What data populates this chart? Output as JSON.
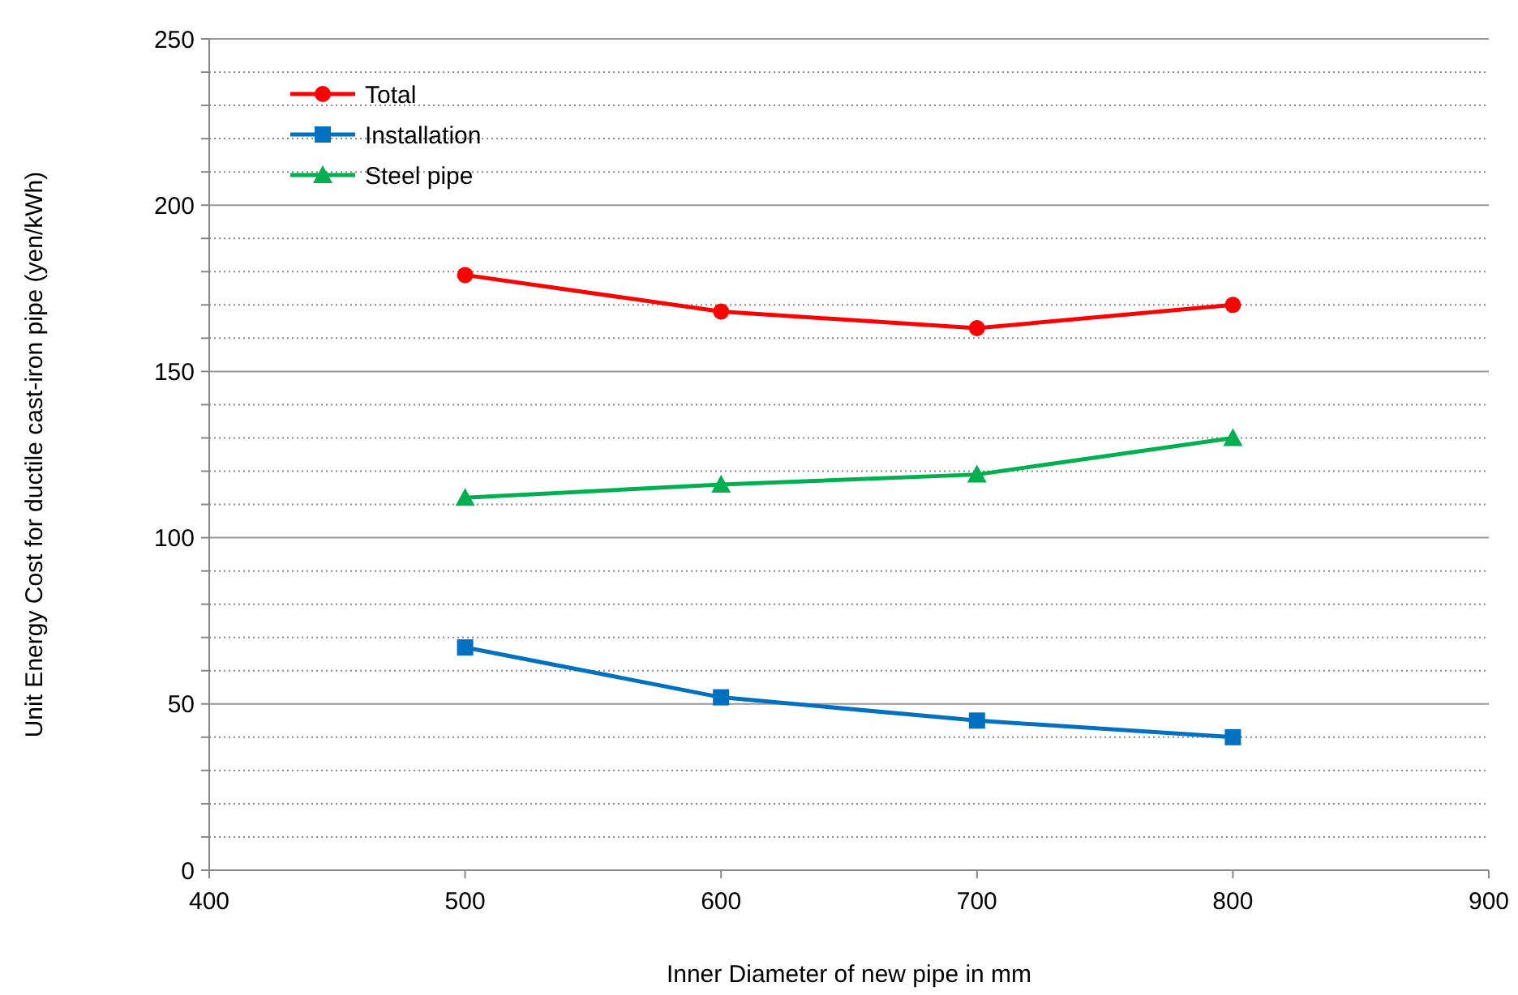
{
  "chart_data": {
    "type": "line",
    "xlabel": "Inner Diameter of new pipe in mm",
    "ylabel": "Unit Energy Cost for ductile cast-iron pipe (yen/kWh)",
    "x": [
      500,
      600,
      700,
      800
    ],
    "series": [
      {
        "name": "Total",
        "color": "#ff0000",
        "values": [
          179,
          168,
          163,
          170
        ],
        "marker": "circle"
      },
      {
        "name": "Installation",
        "color": "#0070c0",
        "values": [
          67,
          52,
          45,
          40
        ],
        "marker": "square"
      },
      {
        "name": "Steel pipe",
        "color": "#00b050",
        "values": [
          112,
          116,
          119,
          130
        ],
        "marker": "triangle"
      }
    ],
    "xlim": [
      400,
      900
    ],
    "xticks": [
      400,
      500,
      600,
      700,
      800,
      900
    ],
    "ylim": [
      0,
      250
    ],
    "yticks": [
      0,
      {
        "value": 10,
        "label": null
      },
      {
        "value": 20,
        "label": null
      },
      {
        "value": 30,
        "label": null
      },
      {
        "value": 40,
        "label": null
      },
      50,
      {
        "value": 60,
        "label": null
      },
      {
        "value": 70,
        "label": null
      },
      {
        "value": 80,
        "label": null
      },
      {
        "value": 90,
        "label": null
      },
      100,
      {
        "value": 110,
        "label": null
      },
      {
        "value": 120,
        "label": null
      },
      {
        "value": 130,
        "label": null
      },
      {
        "value": 140,
        "label": null
      },
      150,
      {
        "value": 160,
        "label": null
      },
      {
        "value": 170,
        "label": null
      },
      {
        "value": 180,
        "label": null
      },
      {
        "value": 190,
        "label": null
      },
      200,
      {
        "value": 210,
        "label": null
      },
      {
        "value": 220,
        "label": null
      },
      {
        "value": 230,
        "label": null
      },
      {
        "value": 240,
        "label": null
      },
      250
    ],
    "grid": "y",
    "legend": "top left",
    "line_style": "solid"
  }
}
